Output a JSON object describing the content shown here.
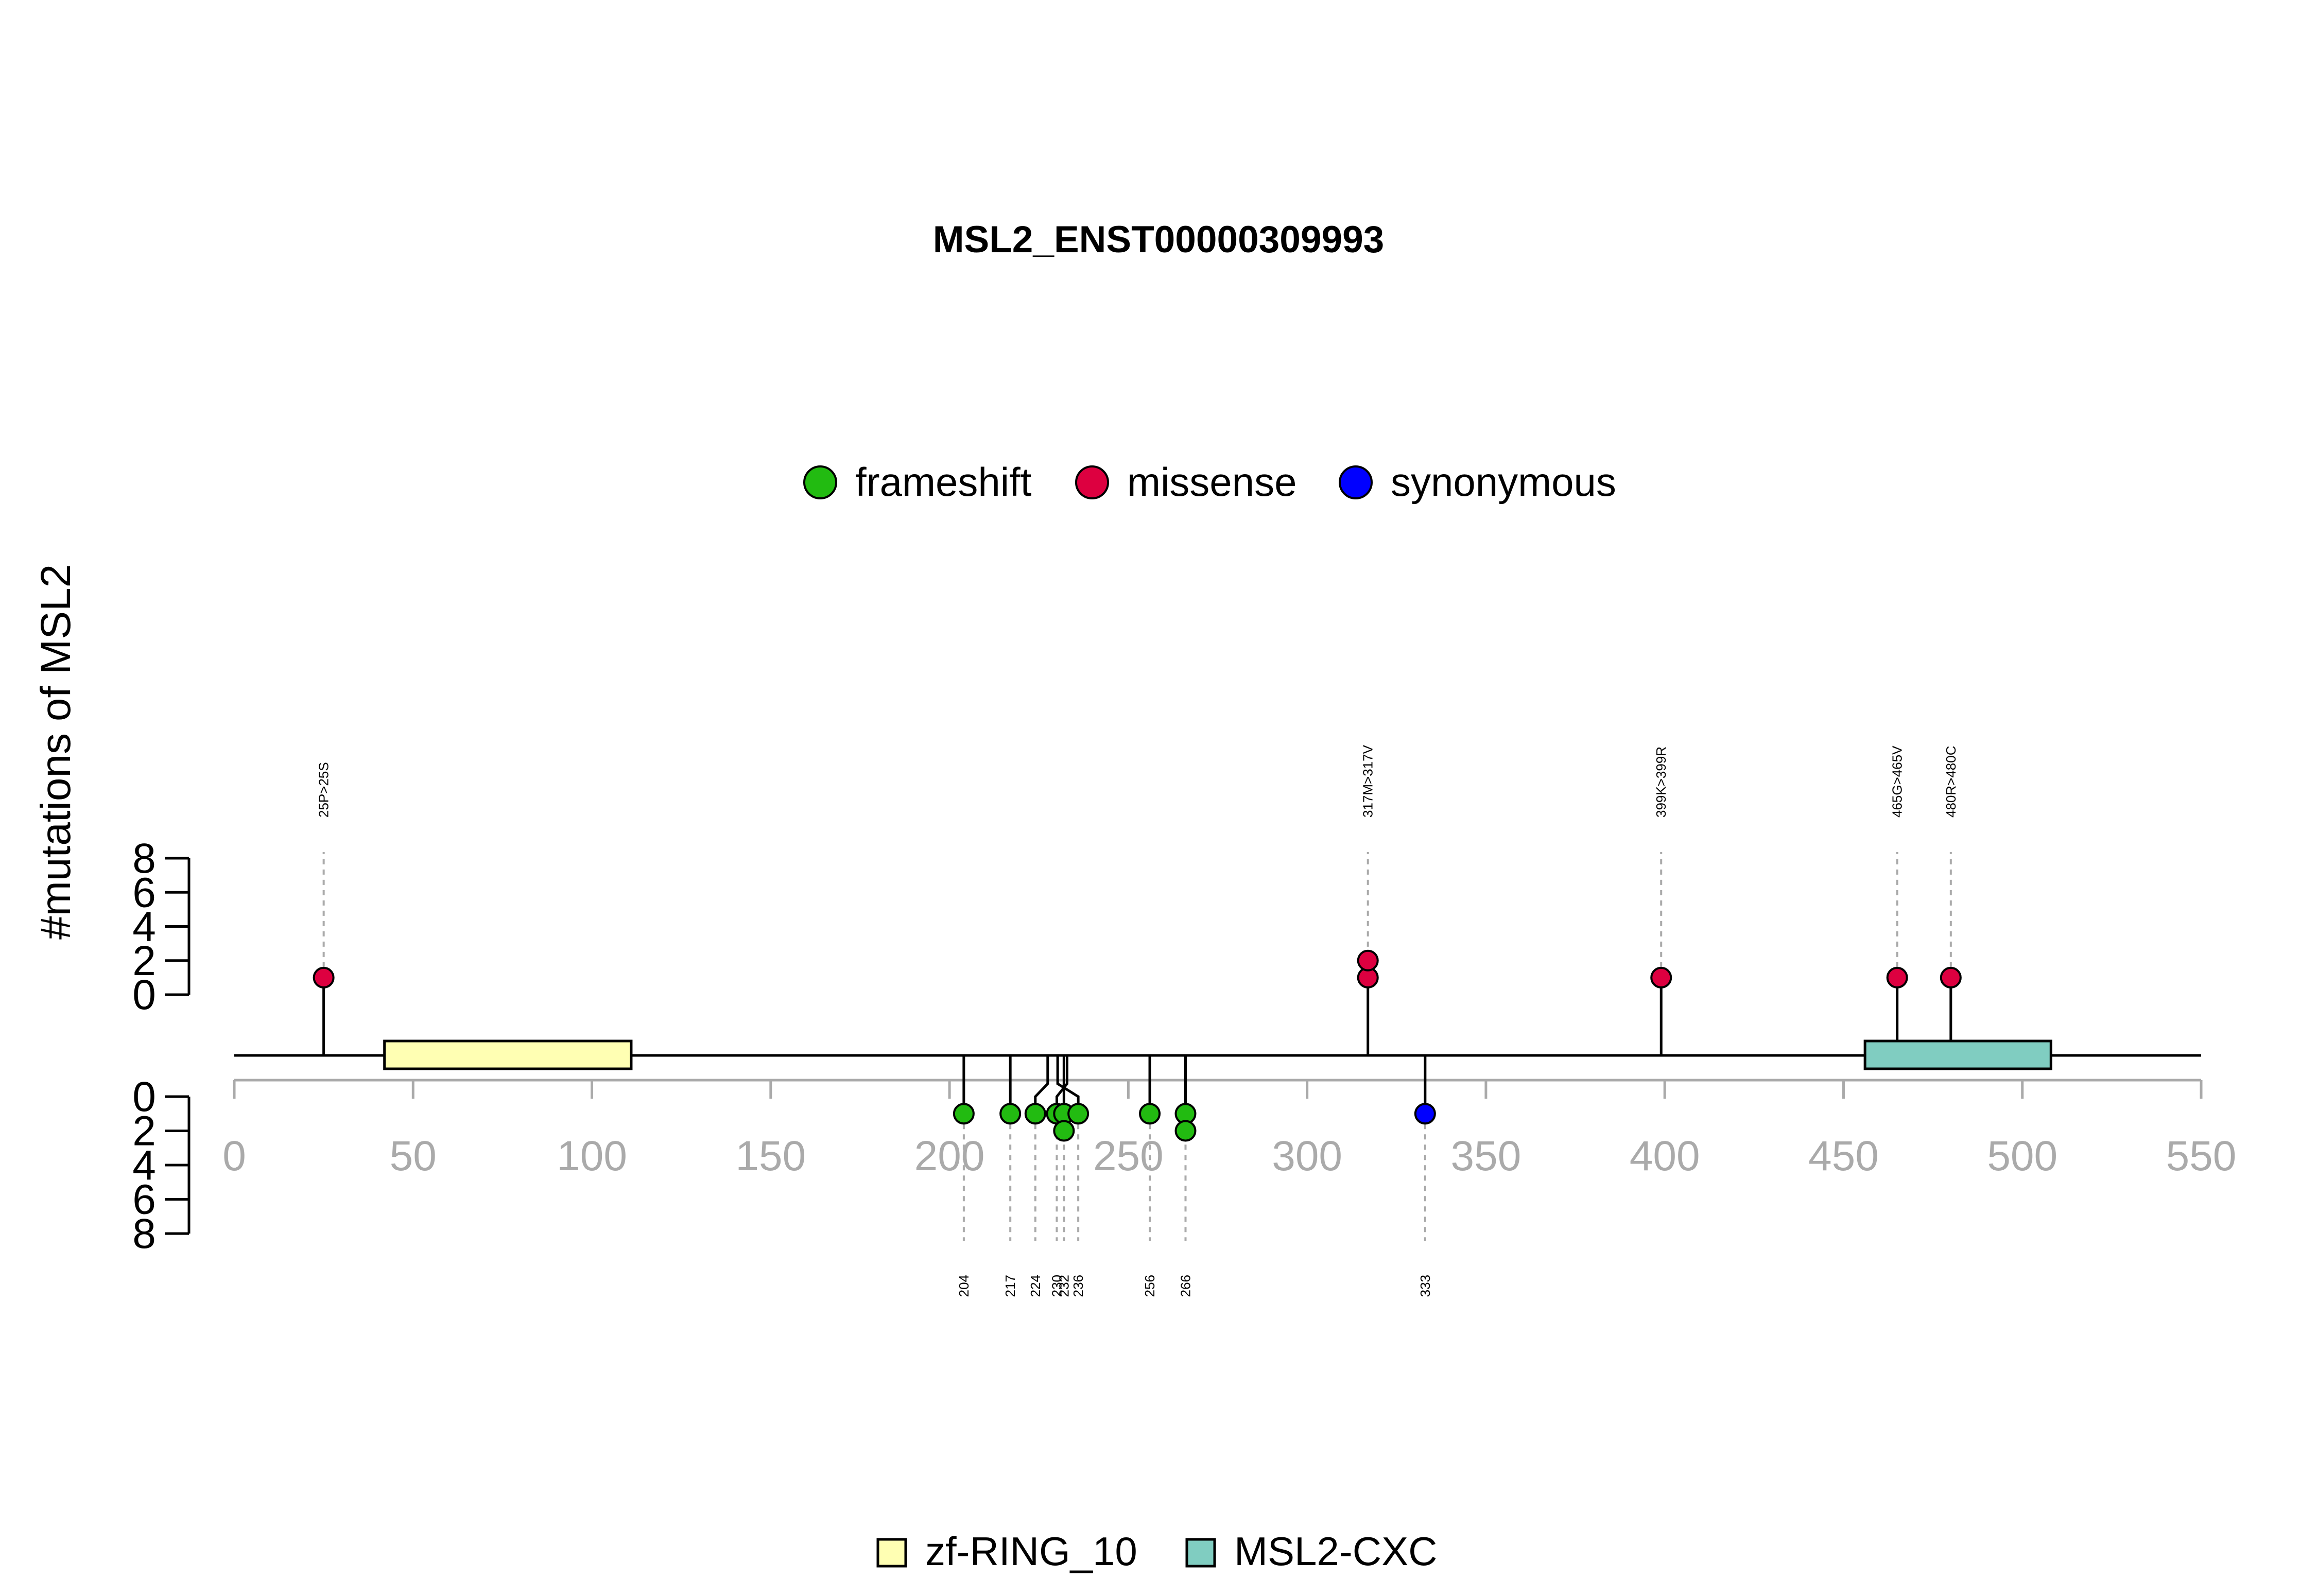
{
  "chart_data": {
    "type": "lollipop",
    "title": "MSL2_ENST00000309993",
    "ylabel": "#mutations of MSL2",
    "x_range": [
      0,
      550
    ],
    "x_ticks": [
      0,
      50,
      100,
      150,
      200,
      250,
      300,
      350,
      400,
      450,
      500,
      550
    ],
    "y_ticks": [
      0,
      2,
      4,
      6,
      8
    ],
    "y_range": [
      0,
      8
    ],
    "legend_top": [
      {
        "label": "frameshift",
        "color": "#22bb11"
      },
      {
        "label": "missense",
        "color": "#dd0040"
      },
      {
        "label": "synonymous",
        "color": "#0000ff"
      }
    ],
    "domains": [
      {
        "name": "zf-RING_10",
        "start": 42,
        "end": 111,
        "color": "#ffffb3"
      },
      {
        "name": "MSL2-CXC",
        "start": 456,
        "end": 508,
        "color": "#80cdc1"
      }
    ],
    "mutations_top": [
      {
        "pos": 25,
        "count": 1,
        "type": "missense",
        "label": "25P>25S"
      },
      {
        "pos": 317,
        "count": 2,
        "type": "missense",
        "label": "317M>317V"
      },
      {
        "pos": 399,
        "count": 1,
        "type": "missense",
        "label": "399K>399R"
      },
      {
        "pos": 465,
        "count": 1,
        "type": "missense",
        "label": "465G>465V"
      },
      {
        "pos": 480,
        "count": 1,
        "type": "missense",
        "label": "480R>480C"
      }
    ],
    "mutations_bottom": [
      {
        "pos": 204,
        "count": 1,
        "type": "frameshift",
        "label": "204"
      },
      {
        "pos": 217,
        "count": 1,
        "type": "frameshift",
        "label": "217"
      },
      {
        "pos": 224,
        "count": 1,
        "type": "frameshift",
        "label": "224"
      },
      {
        "pos": 230,
        "count": 1,
        "type": "frameshift",
        "label": "230"
      },
      {
        "pos": 232,
        "count": 2,
        "type": "frameshift",
        "label": "232"
      },
      {
        "pos": 236,
        "count": 1,
        "type": "frameshift",
        "label": "236"
      },
      {
        "pos": 256,
        "count": 1,
        "type": "frameshift",
        "label": "256"
      },
      {
        "pos": 266,
        "count": 2,
        "type": "frameshift",
        "label": "266"
      },
      {
        "pos": 333,
        "count": 1,
        "type": "synonymous",
        "label": "333"
      }
    ]
  }
}
